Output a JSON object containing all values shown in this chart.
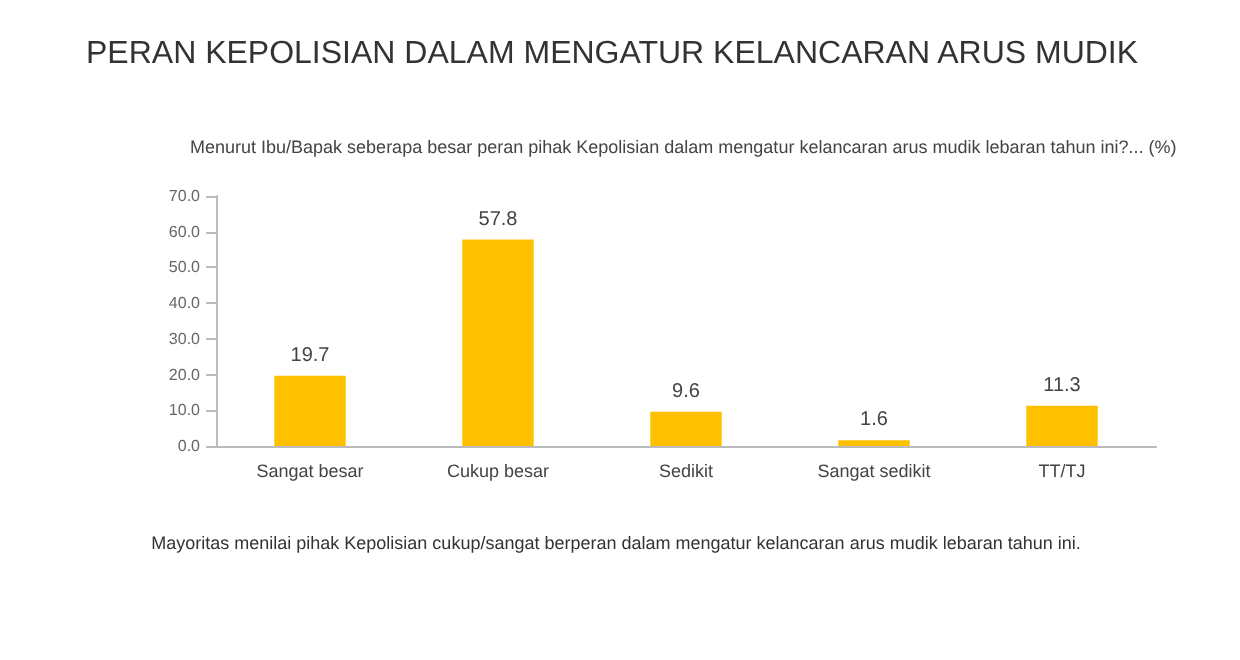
{
  "chart_data": {
    "type": "bar",
    "title": "PERAN KEPOLISIAN DALAM MENGATUR KELANCARAN ARUS MUDIK",
    "subtitle": "Menurut Ibu/Bapak seberapa besar peran pihak Kepolisian dalam mengatur kelancaran arus mudik lebaran tahun ini?... (%)",
    "categories": [
      "Sangat besar",
      "Cukup besar",
      "Sedikit",
      "Sangat sedikit",
      "TT/TJ"
    ],
    "values": [
      19.7,
      57.8,
      9.6,
      1.6,
      11.3
    ],
    "color": "#ffc000",
    "ylim": [
      0,
      70
    ],
    "yticks": [
      {
        "value": 0,
        "label": "0.0"
      },
      {
        "value": 10,
        "label": "10.0"
      },
      {
        "value": 20,
        "label": "20.0"
      },
      {
        "value": 30,
        "label": "30.0"
      },
      {
        "value": 40,
        "label": "40.0"
      },
      {
        "value": 50,
        "label": "50.0"
      },
      {
        "value": 60,
        "label": "60.0"
      },
      {
        "value": 70,
        "label": "70.0"
      }
    ],
    "data_labels": true,
    "grid": false,
    "annotations": [
      "Mayoritas menilai pihak Kepolisian cukup/sangat berperan dalam mengatur kelancaran arus mudik lebaran tahun ini."
    ]
  }
}
